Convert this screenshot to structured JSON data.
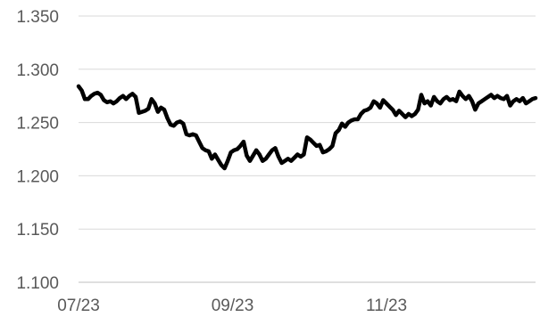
{
  "chart_data": {
    "type": "line",
    "title": "",
    "xlabel": "",
    "ylabel": "",
    "ylim": [
      1.1,
      1.35
    ],
    "yticks": [
      "1.100",
      "1.150",
      "1.200",
      "1.250",
      "1.300",
      "1.350"
    ],
    "yticks_values": [
      1.1,
      1.15,
      1.2,
      1.25,
      1.3,
      1.35
    ],
    "xticks": [
      "07/23",
      "09/23",
      "11/23"
    ],
    "xticks_positions": [
      0,
      62,
      124
    ],
    "x_domain": [
      0,
      184
    ],
    "grid": true,
    "legend": "none",
    "colors": {
      "line": "#000000",
      "grid": "#d9d9d9",
      "text": "#595959"
    },
    "series": [
      {
        "values": [
          1.284,
          1.28,
          1.272,
          1.272,
          1.275,
          1.277,
          1.278,
          1.276,
          1.271,
          1.269,
          1.27,
          1.268,
          1.27,
          1.273,
          1.275,
          1.272,
          1.275,
          1.277,
          1.274,
          1.259,
          1.26,
          1.261,
          1.263,
          1.272,
          1.268,
          1.26,
          1.264,
          1.262,
          1.254,
          1.248,
          1.247,
          1.25,
          1.251,
          1.249,
          1.239,
          1.238,
          1.239,
          1.238,
          1.232,
          1.226,
          1.224,
          1.223,
          1.216,
          1.22,
          1.215,
          1.21,
          1.207,
          1.214,
          1.222,
          1.224,
          1.225,
          1.228,
          1.232,
          1.219,
          1.214,
          1.219,
          1.224,
          1.22,
          1.214,
          1.216,
          1.22,
          1.224,
          1.226,
          1.218,
          1.212,
          1.214,
          1.216,
          1.214,
          1.217,
          1.22,
          1.218,
          1.22,
          1.236,
          1.234,
          1.231,
          1.228,
          1.229,
          1.222,
          1.223,
          1.225,
          1.228,
          1.24,
          1.243,
          1.249,
          1.246,
          1.25,
          1.252,
          1.253,
          1.253,
          1.258,
          1.261,
          1.262,
          1.264,
          1.27,
          1.268,
          1.264,
          1.271,
          1.268,
          1.265,
          1.262,
          1.257,
          1.261,
          1.258,
          1.255,
          1.258,
          1.256,
          1.258,
          1.262,
          1.276,
          1.268,
          1.27,
          1.266,
          1.274,
          1.27,
          1.268,
          1.272,
          1.274,
          1.271,
          1.272,
          1.27,
          1.279,
          1.275,
          1.272,
          1.275,
          1.27,
          1.262,
          1.268,
          1.27,
          1.272,
          1.274,
          1.276,
          1.273,
          1.275,
          1.273,
          1.272,
          1.275,
          1.266,
          1.27,
          1.272,
          1.27,
          1.273,
          1.268,
          1.27,
          1.272,
          1.273
        ]
      }
    ]
  }
}
